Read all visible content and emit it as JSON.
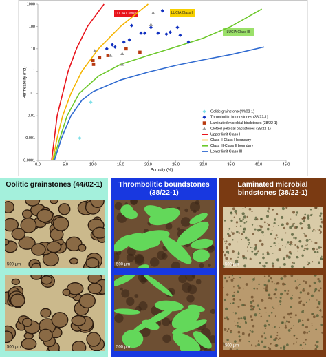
{
  "chart_data": {
    "type": "scatter",
    "xlabel": "Porosity (%)",
    "ylabel": "Permeability (md)",
    "xlim": [
      0,
      45
    ],
    "ylim": [
      0.0001,
      1000
    ],
    "log_y": true,
    "xticks": [
      {
        "value": 0,
        "label": "0.0"
      },
      {
        "value": 5,
        "label": "5.0"
      },
      {
        "value": 10,
        "label": "10.0"
      },
      {
        "value": 15,
        "label": "15.0"
      },
      {
        "value": 20,
        "label": "20.0"
      },
      {
        "value": 25,
        "label": "25.0"
      },
      {
        "value": 30,
        "label": "30.0"
      },
      {
        "value": 35,
        "label": "35.0"
      },
      {
        "value": 40,
        "label": "40.0"
      },
      {
        "value": 45,
        "label": "45.0"
      }
    ],
    "yticks": [
      0.0001,
      0.001,
      0.01,
      0.1,
      1,
      10,
      100,
      1000
    ],
    "legend": "lower right",
    "series": [
      {
        "name": "Oolitic grainstone (44/02-1)",
        "color": "#7fe0e8",
        "marker": "diamond",
        "x": [
          7.6,
          9.6
        ],
        "values": [
          0.001,
          0.04
        ]
      },
      {
        "name": "Thrombolitic boundstones (38/22-1)",
        "color": "#1030c0",
        "marker": "diamond",
        "x": [
          17.0,
          18.7,
          19.4,
          21.8,
          22.6,
          23.3,
          25.3,
          27.3,
          14.0,
          15.6,
          12.5,
          16.6,
          20.5,
          25.8,
          13.5,
          24.0
        ],
        "values": [
          110,
          50,
          50,
          50,
          500,
          45,
          90,
          20,
          12,
          20,
          10,
          25,
          90,
          40,
          15,
          55
        ]
      },
      {
        "name": "Laminated microbial bindstones (38/22-1)",
        "color": "#b83a10",
        "marker": "square",
        "x": [
          10.0,
          11.2,
          12.7,
          16.0,
          18.5,
          10.1
        ],
        "values": [
          3,
          4,
          5,
          10,
          7,
          2
        ]
      },
      {
        "name": "Clotted peloidal packstones (38/22-1)",
        "color": "#909090",
        "marker": "triangle",
        "x": [
          10.3,
          13.2,
          15.3,
          15.3,
          20.5,
          20.9
        ],
        "values": [
          8,
          5,
          6,
          2,
          120,
          400
        ]
      },
      {
        "name": "Upper limit Class I",
        "color": "#e8141c",
        "marker": "line",
        "x": [
          2.5,
          3,
          3.5,
          4.5,
          5.5,
          7,
          9,
          12
        ],
        "values": [
          0.0001,
          0.001,
          0.01,
          0.1,
          1,
          10,
          100,
          1000
        ]
      },
      {
        "name": "Class II-Class I boundary",
        "color": "#f5b400",
        "marker": "line",
        "x": [
          2.7,
          3.5,
          4.5,
          6,
          8,
          11,
          15,
          20
        ],
        "values": [
          0.0001,
          0.001,
          0.01,
          0.1,
          1,
          10,
          100,
          1000
        ]
      },
      {
        "name": "Class III-Class II boundary",
        "color": "#6cc82a",
        "marker": "line",
        "x": [
          2.8,
          4,
          5.3,
          7.5,
          11,
          15,
          20,
          25,
          30,
          35,
          40.6
        ],
        "values": [
          0.0001,
          0.001,
          0.01,
          0.1,
          0.6,
          2,
          5,
          12,
          30,
          100,
          600
        ]
      },
      {
        "name": "Lower limit Class III",
        "color": "#2f6ad0",
        "marker": "line",
        "x": [
          3,
          4.3,
          6,
          8,
          10,
          15,
          20,
          25,
          30,
          35,
          41
        ],
        "values": [
          0.0001,
          0.001,
          0.01,
          0.05,
          0.12,
          0.4,
          0.9,
          1.8,
          3.2,
          5.5,
          12
        ]
      }
    ],
    "annotations": [
      {
        "text": "LUCIA Class I",
        "color": "#e8141c"
      },
      {
        "text": "LUCIA Class II",
        "color": "#f7d000"
      },
      {
        "text": "LUCIA Class III",
        "color": "#9be06a"
      }
    ]
  },
  "panels": [
    {
      "title": "Oolitic grainstones (44/02-1)",
      "color": "#a4f0dc",
      "scale_labels": [
        "500 µm",
        "500 µm"
      ]
    },
    {
      "title": "Thrombolitic boundstones (38/22-1)",
      "color": "#1838e0",
      "scale_labels": [
        "500 µm",
        "500 µm"
      ]
    },
    {
      "title": "Laminated microbial bindstones (38/22-1)",
      "color": "#7a3a12",
      "scale_labels": [
        "500 µm",
        "500 µm"
      ]
    }
  ]
}
